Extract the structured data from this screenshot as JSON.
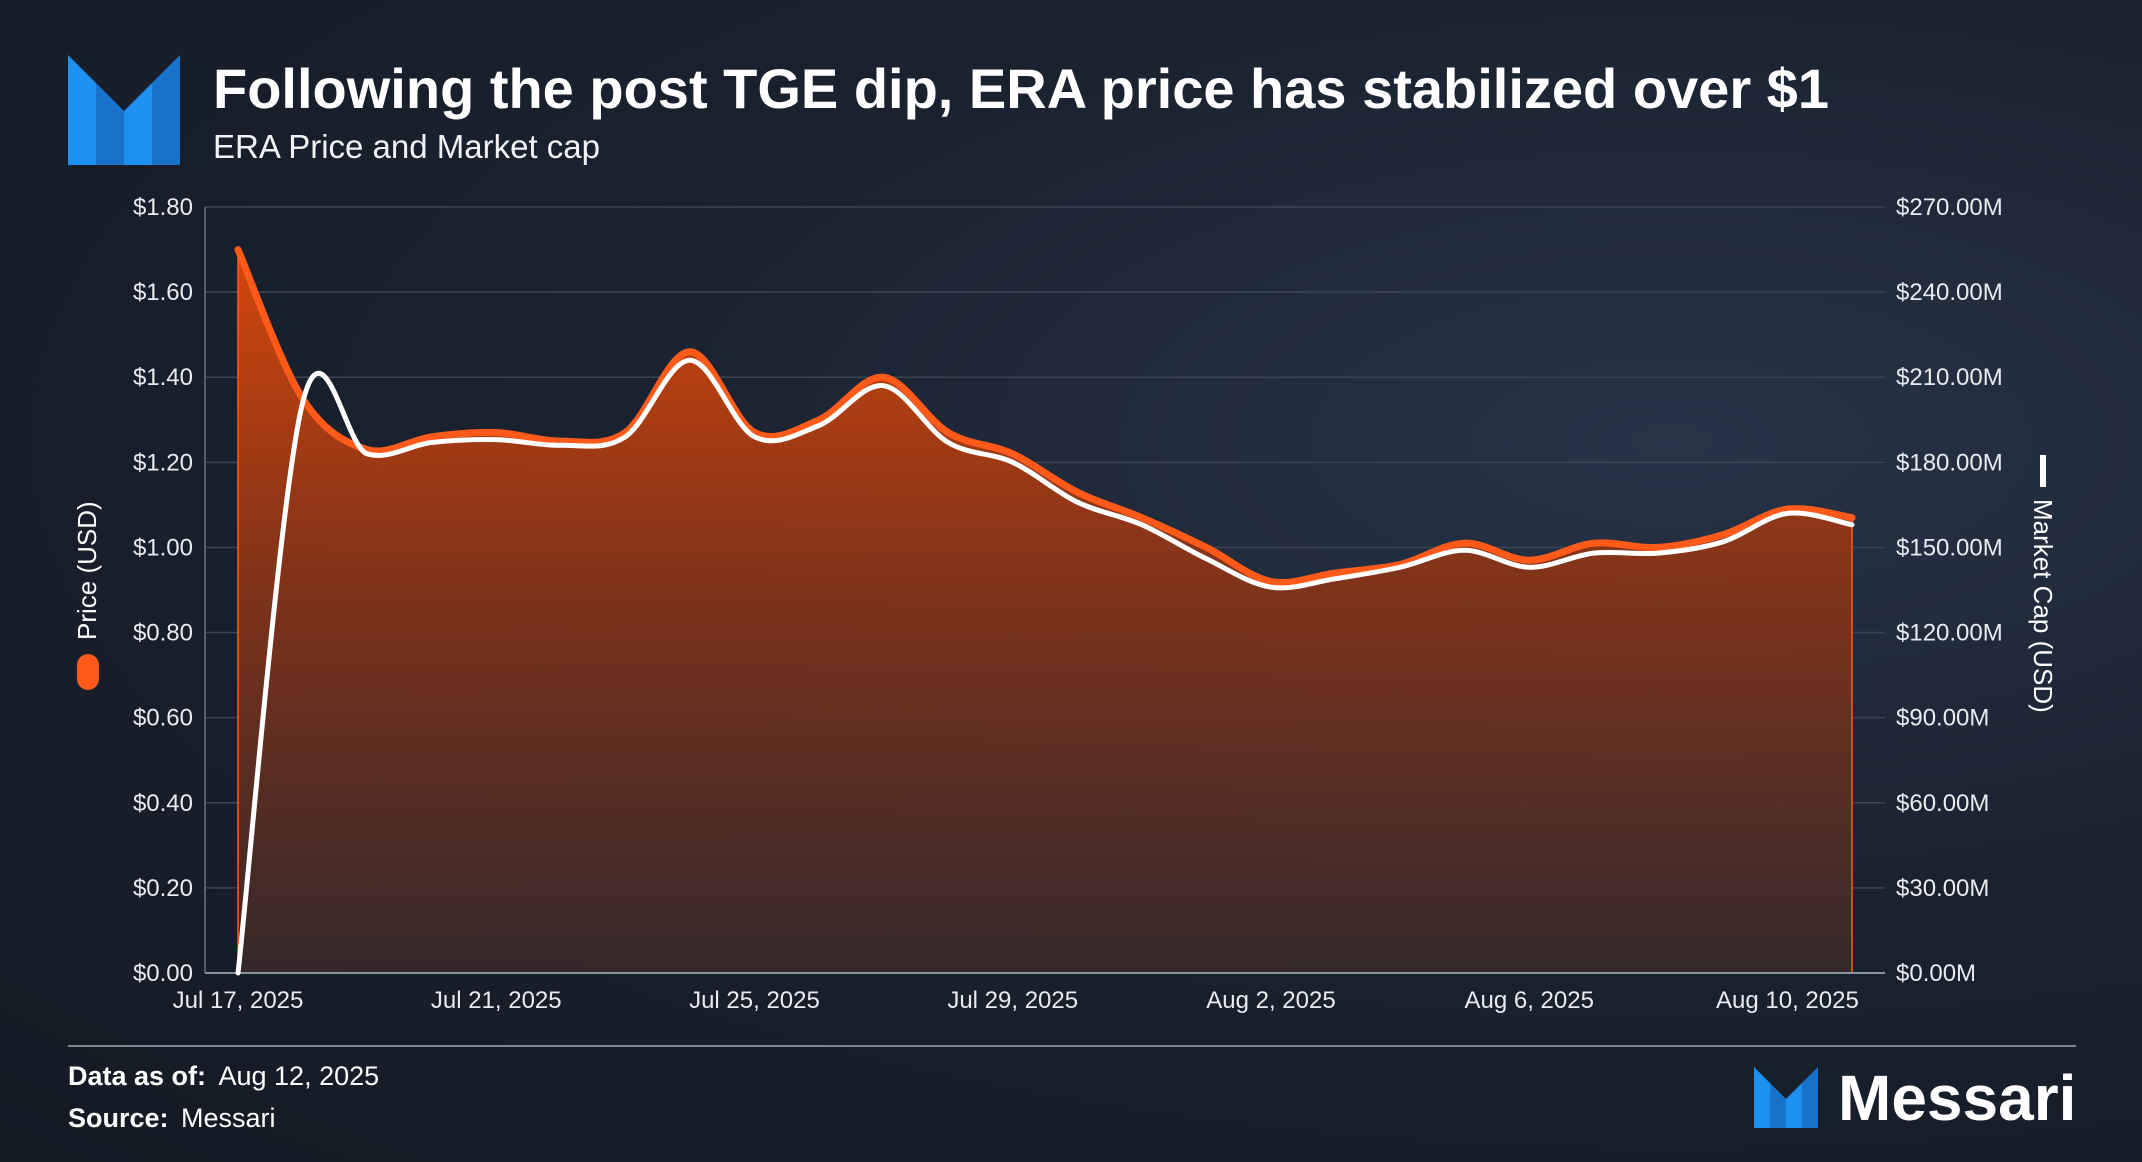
{
  "header": {
    "title": "Following the post TGE dip, ERA price has stabilized over $1",
    "subtitle": "ERA Price and Market cap"
  },
  "footer": {
    "data_label": "Data as of:",
    "data_value": "Aug 12, 2025",
    "source_label": "Source:",
    "source_value": "Messari",
    "brand": "Messari"
  },
  "colors": {
    "accent": "#e8531a",
    "price_line": "#ff5a1a",
    "mcap_line": "#ffffff",
    "logo_blue": "#1e90f0"
  },
  "chart_data": {
    "type": "area",
    "title": "Following the post TGE dip, ERA price has stabilized over $1",
    "subtitle": "ERA Price and Market cap",
    "x": [
      "Jul 17, 2025",
      "Jul 18, 2025",
      "Jul 19, 2025",
      "Jul 20, 2025",
      "Jul 21, 2025",
      "Jul 22, 2025",
      "Jul 23, 2025",
      "Jul 24, 2025",
      "Jul 25, 2025",
      "Jul 26, 2025",
      "Jul 27, 2025",
      "Jul 28, 2025",
      "Jul 29, 2025",
      "Jul 30, 2025",
      "Jul 31, 2025",
      "Aug 1, 2025",
      "Aug 2, 2025",
      "Aug 3, 2025",
      "Aug 4, 2025",
      "Aug 5, 2025",
      "Aug 6, 2025",
      "Aug 7, 2025",
      "Aug 8, 2025",
      "Aug 9, 2025",
      "Aug 10, 2025",
      "Aug 11, 2025"
    ],
    "x_tick_labels": [
      "Jul 17, 2025",
      "Jul 21, 2025",
      "Jul 25, 2025",
      "Jul 29, 2025",
      "Aug 2, 2025",
      "Aug 6, 2025",
      "Aug 10, 2025"
    ],
    "x_tick_indices": [
      0,
      4,
      8,
      12,
      16,
      20,
      24
    ],
    "series": [
      {
        "name": "Price (USD)",
        "axis": "left",
        "style": "area",
        "values": [
          1.7,
          1.35,
          1.23,
          1.26,
          1.27,
          1.25,
          1.27,
          1.46,
          1.27,
          1.3,
          1.4,
          1.27,
          1.22,
          1.13,
          1.07,
          1.0,
          0.92,
          0.94,
          0.96,
          1.01,
          0.97,
          1.01,
          1.0,
          1.03,
          1.09,
          1.07
        ]
      },
      {
        "name": "Market Cap (USD)",
        "axis": "right",
        "style": "line",
        "values": [
          0,
          201,
          183,
          187,
          188,
          186,
          189,
          216,
          189,
          193,
          207,
          187,
          180,
          166,
          158,
          146,
          136,
          139,
          143,
          149,
          143,
          148,
          148,
          152,
          162,
          158
        ]
      }
    ],
    "ylabel": "Price (USD)",
    "y2label": "Market Cap (USD)",
    "ylim": [
      0,
      1.8
    ],
    "y2lim": [
      0,
      270
    ],
    "y_ticks": [
      0,
      0.2,
      0.4,
      0.6,
      0.8,
      1.0,
      1.2,
      1.4,
      1.6,
      1.8
    ],
    "y_tick_labels": [
      "$0.00",
      "$0.20",
      "$0.40",
      "$0.60",
      "$0.80",
      "$1.00",
      "$1.20",
      "$1.40",
      "$1.60",
      "$1.80"
    ],
    "y2_ticks": [
      0,
      30,
      60,
      90,
      120,
      150,
      180,
      210,
      240,
      270
    ],
    "y2_tick_labels": [
      "$0.00M",
      "$30.00M",
      "$60.00M",
      "$90.00M",
      "$120.00M",
      "$150.00M",
      "$180.00M",
      "$210.00M",
      "$240.00M",
      "$270.00M"
    ],
    "grid": true,
    "legend": "axis-titles"
  }
}
